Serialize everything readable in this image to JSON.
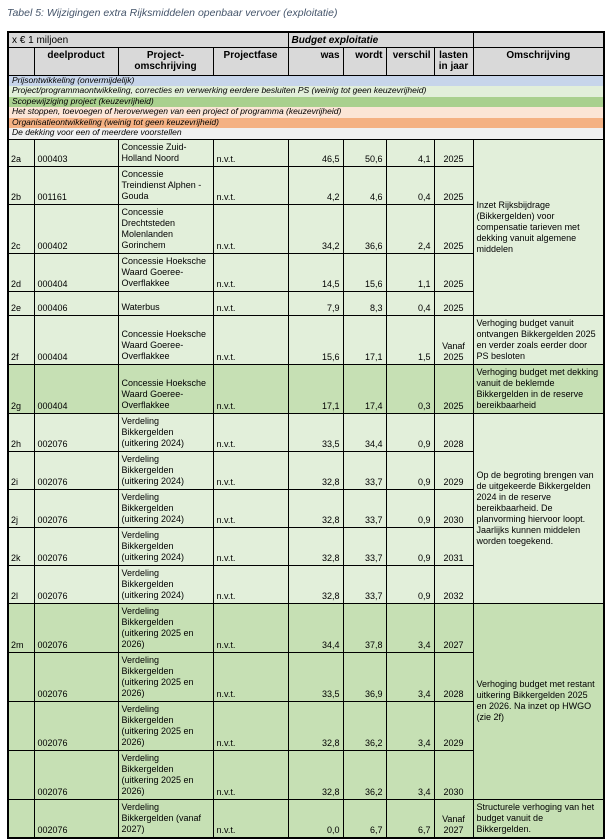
{
  "title": "Tabel 5: Wijzigingen extra Rijksmiddelen openbaar vervoer (exploitatie)",
  "colors": {
    "title_text": "#44546a",
    "header_gray": "#d9d9d9",
    "row_light_green": "#e2efda",
    "row_dark_green": "#c6e0b4",
    "border": "#000000"
  },
  "table": {
    "unit_label": "x € 1 miljoen",
    "budget_header": "Budget exploitatie",
    "columns": {
      "rowlabel": "",
      "deelproduct": "deelproduct",
      "project": "Project-omschrijving",
      "fase": "Projectfase",
      "was": "was",
      "wordt": "wordt",
      "verschil": "verschil",
      "lasten": "lasten in jaar",
      "omschrijving": "Omschrijving"
    },
    "legend": [
      {
        "label": "Prijsontwikkeling (onvermijdelijk)",
        "color": "#c7d5ea"
      },
      {
        "label": "Project/programmaontwikkeling, correcties en verwerking eerdere besluiten PS (weinig tot geen keuzevrijheid)",
        "color": "#e2efda"
      },
      {
        "label": "Scopewijziging project (keuzevrijheid)",
        "color": "#a9d08e"
      },
      {
        "label": "Het stoppen, toevoegen of heroverwegen van een project of programma (keuzevrijheid)",
        "color": "#fbe5d6"
      },
      {
        "label": "Organisatieontwikkeling (weinig tot geen keuzevrijheid)",
        "color": "#f4b183"
      },
      {
        "label": "De dekking voor een of meerdere voorstellen",
        "color": "#f0f0f0"
      }
    ],
    "rows": [
      {
        "id": "2a",
        "deelproduct": "000403",
        "project": "Concessie Zuid-Holland Noord",
        "fase": "n.v.t.",
        "was": "46,5",
        "wordt": "50,6",
        "verschil": "4,1",
        "lasten": "2025",
        "shade": "light",
        "oms": {
          "span": 5,
          "text": "Inzet Rijksbijdrage (Bikkergelden) voor compensatie tarieven met dekking vanuit algemene middelen"
        }
      },
      {
        "id": "2b",
        "deelproduct": "001161",
        "project": "Concessie Treindienst Alphen - Gouda",
        "fase": "n.v.t.",
        "was": "4,2",
        "wordt": "4,6",
        "verschil": "0,4",
        "lasten": "2025",
        "shade": "light"
      },
      {
        "id": "2c",
        "deelproduct": "000402",
        "project": "Concessie Drechtsteden Molenlanden Gorinchem",
        "fase": "n.v.t.",
        "was": "34,2",
        "wordt": "36,6",
        "verschil": "2,4",
        "lasten": "2025",
        "shade": "light"
      },
      {
        "id": "2d",
        "deelproduct": "000404",
        "project": "Concessie Hoeksche Waard Goeree-Overflakkee",
        "fase": "n.v.t.",
        "was": "14,5",
        "wordt": "15,6",
        "verschil": "1,1",
        "lasten": "2025",
        "shade": "light"
      },
      {
        "id": "2e",
        "deelproduct": "000406",
        "project": "Waterbus",
        "fase": "n.v.t.",
        "was": "7,9",
        "wordt": "8,3",
        "verschil": "0,4",
        "lasten": "2025",
        "shade": "light"
      },
      {
        "id": "2f",
        "deelproduct": "000404",
        "project": "Concessie Hoeksche Waard Goeree-Overflakkee",
        "fase": "n.v.t.",
        "was": "15,6",
        "wordt": "17,1",
        "verschil": "1,5",
        "lasten": "Vanaf 2025",
        "shade": "light",
        "oms": {
          "span": 1,
          "text": "Verhoging budget vanuit ontvangen Bikkergelden 2025 en verder zoals eerder door PS besloten"
        }
      },
      {
        "id": "2g",
        "deelproduct": "000404",
        "project": "Concessie Hoeksche Waard Goeree-Overflakkee",
        "fase": "n.v.t.",
        "was": "17,1",
        "wordt": "17,4",
        "verschil": "0,3",
        "lasten": "2025",
        "shade": "dark",
        "oms": {
          "span": 1,
          "text": "Verhoging budget met dekking vanuit de beklemde Bikkergelden in de reserve bereikbaarheid"
        }
      },
      {
        "id": "2h",
        "deelproduct": "002076",
        "project": "Verdeling Bikkergelden (uitkering 2024)",
        "fase": "n.v.t.",
        "was": "33,5",
        "wordt": "34,4",
        "verschil": "0,9",
        "lasten": "2028",
        "shade": "light",
        "oms": {
          "span": 5,
          "text": "Op de begroting brengen van de uitgekeerde Bikkergelden 2024 in de reserve bereikbaarheid. De planvorming hiervoor loopt. Jaarlijks kunnen middelen worden toegekend."
        }
      },
      {
        "id": "2i",
        "deelproduct": "002076",
        "project": "Verdeling Bikkergelden (uitkering 2024)",
        "fase": "n.v.t.",
        "was": "32,8",
        "wordt": "33,7",
        "verschil": "0,9",
        "lasten": "2029",
        "shade": "light"
      },
      {
        "id": "2j",
        "deelproduct": "002076",
        "project": "Verdeling Bikkergelden (uitkering 2024)",
        "fase": "n.v.t.",
        "was": "32,8",
        "wordt": "33,7",
        "verschil": "0,9",
        "lasten": "2030",
        "shade": "light"
      },
      {
        "id": "2k",
        "deelproduct": "002076",
        "project": "Verdeling Bikkergelden (uitkering 2024)",
        "fase": "n.v.t.",
        "was": "32,8",
        "wordt": "33,7",
        "verschil": "0,9",
        "lasten": "2031",
        "shade": "light"
      },
      {
        "id": "2l",
        "deelproduct": "002076",
        "project": "Verdeling Bikkergelden (uitkering 2024)",
        "fase": "n.v.t.",
        "was": "32,8",
        "wordt": "33,7",
        "verschil": "0,9",
        "lasten": "2032",
        "shade": "light"
      },
      {
        "id": "2m",
        "deelproduct": "002076",
        "project": "Verdeling Bikkergelden (uitkering 2025 en 2026)",
        "fase": "n.v.t.",
        "was": "34,4",
        "wordt": "37,8",
        "verschil": "3,4",
        "lasten": "2027",
        "shade": "dark",
        "oms": {
          "span": 4,
          "text": "Verhoging budget met restant uitkering Bikkergelden 2025 en 2026. Na inzet op HWGO (zie 2f)"
        }
      },
      {
        "id": "",
        "deelproduct": "002076",
        "project": "Verdeling Bikkergelden (uitkering 2025 en 2026)",
        "fase": "n.v.t.",
        "was": "33,5",
        "wordt": "36,9",
        "verschil": "3,4",
        "lasten": "2028",
        "shade": "dark"
      },
      {
        "id": "",
        "deelproduct": "002076",
        "project": "Verdeling Bikkergelden (uitkering 2025 en 2026)",
        "fase": "n.v.t.",
        "was": "32,8",
        "wordt": "36,2",
        "verschil": "3,4",
        "lasten": "2029",
        "shade": "dark"
      },
      {
        "id": "",
        "deelproduct": "002076",
        "project": "Verdeling Bikkergelden (uitkering 2025 en 2026)",
        "fase": "n.v.t.",
        "was": "32,8",
        "wordt": "36,2",
        "verschil": "3,4",
        "lasten": "2030",
        "shade": "dark"
      },
      {
        "id": "",
        "deelproduct": "002076",
        "project": "Verdeling Bikkergelden (vanaf 2027)",
        "fase": "n.v.t.",
        "was": "0,0",
        "wordt": "6,7",
        "verschil": "6,7",
        "lasten": "Vanaf 2027",
        "shade": "dark",
        "oms": {
          "span": 1,
          "text": "Structurele verhoging van het budget vanuit de Bikkergelden."
        }
      }
    ]
  }
}
